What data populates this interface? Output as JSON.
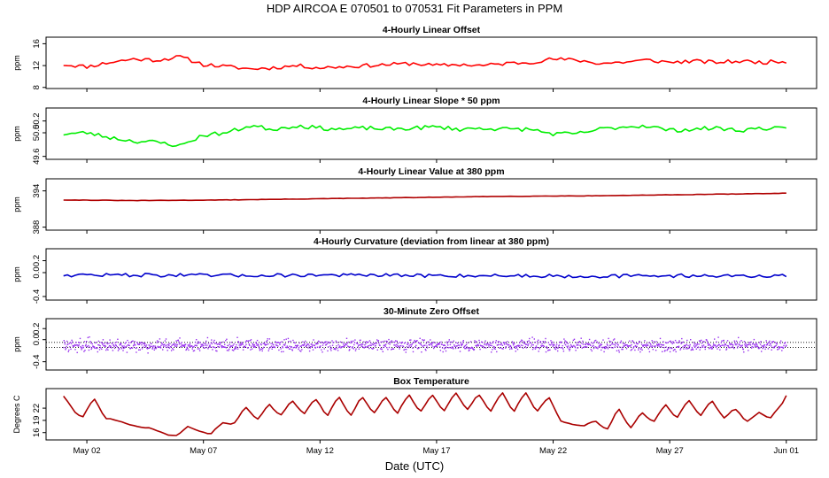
{
  "figure": {
    "title": "HDP   AIRCOA E   070501 to 070531   Fit Parameters in PPM",
    "xlabel": "Date (UTC)"
  },
  "x_axis": {
    "ticks": [
      {
        "day": 2,
        "label": "May 02"
      },
      {
        "day": 7,
        "label": "May 07"
      },
      {
        "day": 12,
        "label": "May 12"
      },
      {
        "day": 17,
        "label": "May 17"
      },
      {
        "day": 22,
        "label": "May 22"
      },
      {
        "day": 27,
        "label": "May 27"
      },
      {
        "day": 32,
        "label": "Jun 01"
      }
    ],
    "xlim": [
      0.25,
      33.3
    ]
  },
  "chart_data": [
    {
      "type": "line",
      "title": "4-Hourly Linear Offset",
      "ylabel": "ppm",
      "ylim": [
        7.8,
        17.2
      ],
      "yticks": [
        {
          "v": 8,
          "label": "8"
        },
        {
          "v": 12,
          "label": "12"
        },
        {
          "v": 16,
          "label": "16"
        }
      ],
      "color": "#ff0000",
      "mode": "line",
      "x_range": [
        1.0,
        32.0
      ],
      "x": [
        1,
        2,
        3,
        4,
        5,
        6,
        7,
        8,
        9,
        10,
        11,
        12,
        13,
        14,
        15,
        16,
        17,
        18,
        19,
        20,
        21,
        22,
        23,
        24,
        25,
        26,
        27,
        28,
        29,
        30,
        31,
        32
      ],
      "y": [
        12.2,
        11.8,
        12.6,
        13.2,
        13.0,
        13.6,
        12.2,
        11.8,
        11.4,
        11.6,
        12.0,
        11.6,
        11.8,
        12.0,
        12.2,
        12.4,
        12.0,
        12.2,
        12.0,
        12.4,
        12.6,
        13.2,
        13.0,
        12.4,
        12.6,
        13.0,
        12.6,
        12.8,
        12.6,
        12.8,
        12.6,
        12.8
      ],
      "noise": 0.35,
      "seed": 11
    },
    {
      "type": "line",
      "title": "4-Hourly Linear Slope * 50 ppm",
      "ylabel": "ppm",
      "ylim": [
        49.55,
        50.42
      ],
      "yticks": [
        {
          "v": 49.6,
          "label": "49.6"
        },
        {
          "v": 50.0,
          "label": "50.0"
        },
        {
          "v": 50.2,
          "label": "50.2"
        }
      ],
      "color": "#00ee00",
      "mode": "line",
      "x_range": [
        1.0,
        32.0
      ],
      "x": [
        1,
        2,
        3,
        4,
        5,
        6,
        7,
        8,
        9,
        10,
        11,
        12,
        13,
        14,
        15,
        16,
        17,
        18,
        19,
        20,
        21,
        22,
        23,
        24,
        25,
        26,
        27,
        28,
        29,
        30,
        31,
        32
      ],
      "y": [
        49.98,
        50.0,
        49.92,
        49.86,
        49.84,
        49.78,
        49.96,
        50.0,
        50.12,
        50.06,
        50.12,
        50.08,
        50.06,
        50.08,
        50.06,
        50.08,
        50.1,
        50.06,
        50.08,
        50.06,
        50.06,
        49.98,
        49.98,
        50.06,
        50.1,
        50.12,
        50.04,
        50.06,
        50.08,
        50.04,
        50.08,
        50.06
      ],
      "noise": 0.035,
      "seed": 23
    },
    {
      "type": "line",
      "title": "4-Hourly Linear Value at 380 ppm",
      "ylabel": "ppm",
      "ylim": [
        387.5,
        396.0
      ],
      "yticks": [
        {
          "v": 388,
          "label": "388"
        },
        {
          "v": 394,
          "label": "394"
        }
      ],
      "color": "#b00000",
      "mode": "line",
      "x_range": [
        1.0,
        32.0
      ],
      "x": [
        1,
        4,
        8,
        12,
        16,
        20,
        24,
        28,
        32
      ],
      "y": [
        392.5,
        392.4,
        392.5,
        392.7,
        392.9,
        393.1,
        393.2,
        393.4,
        393.6
      ],
      "noise": 0.03,
      "seed": 31
    },
    {
      "type": "line",
      "title": "4-Hourly Curvature (deviation from linear at 380 ppm)",
      "ylabel": "ppm",
      "ylim": [
        -0.46,
        0.4
      ],
      "yticks": [
        {
          "v": -0.4,
          "label": "-0.4"
        },
        {
          "v": 0.0,
          "label": "0.0"
        },
        {
          "v": 0.2,
          "label": "0.2"
        }
      ],
      "color": "#0000cc",
      "mode": "line",
      "x_range": [
        1.0,
        32.0
      ],
      "x": [
        1,
        4,
        8,
        12,
        16,
        20,
        24,
        28,
        32
      ],
      "y": [
        -0.04,
        -0.04,
        -0.05,
        -0.04,
        -0.05,
        -0.05,
        -0.06,
        -0.05,
        -0.06
      ],
      "noise": 0.03,
      "seed": 47
    },
    {
      "type": "scatter",
      "title": "30-Minute Zero Offset",
      "ylabel": "ppm",
      "ylim": [
        -0.55,
        0.38
      ],
      "yticks": [
        {
          "v": -0.4,
          "label": "-0.4"
        },
        {
          "v": 0.0,
          "label": "0.0"
        },
        {
          "v": 0.2,
          "label": "0.2"
        }
      ],
      "color": "#9933ee",
      "mode": "points",
      "x_range": [
        1.0,
        32.0
      ],
      "x": [
        1,
        32
      ],
      "y": [
        -0.1,
        -0.1
      ],
      "noise": 0.08,
      "seed": 59,
      "hlines": [
        {
          "v": -0.05,
          "label": "upper reference line"
        },
        {
          "v": -0.14,
          "label": "lower reference line"
        }
      ]
    },
    {
      "type": "line",
      "title": "Box Temperature",
      "ylabel": "Degrees C",
      "ylim": [
        14.2,
        26.8
      ],
      "yticks": [
        {
          "v": 16,
          "label": "16"
        },
        {
          "v": 19,
          "label": "19"
        },
        {
          "v": 22,
          "label": "22"
        }
      ],
      "color": "#aa0000",
      "mode": "line",
      "x_range": [
        1.0,
        32.0
      ],
      "x": [
        1.0,
        1.5,
        1.8,
        2.3,
        2.8,
        3.3,
        3.8,
        4.3,
        4.8,
        5.3,
        5.8,
        6.3,
        6.8,
        7.3,
        7.8,
        8.3,
        8.8,
        9.3,
        9.8,
        10.3,
        10.8,
        11.3,
        11.8,
        12.3,
        12.8,
        13.3,
        13.8,
        14.3,
        14.8,
        15.3,
        15.8,
        16.3,
        16.8,
        17.3,
        17.8,
        18.3,
        18.8,
        19.3,
        19.8,
        20.3,
        20.8,
        21.3,
        21.8,
        22.3,
        22.8,
        23.3,
        23.8,
        24.3,
        24.8,
        25.3,
        25.8,
        26.3,
        26.8,
        27.3,
        27.8,
        28.3,
        28.8,
        29.3,
        29.8,
        30.3,
        30.8,
        31.3,
        31.8,
        32.0
      ],
      "y": [
        25.0,
        21.0,
        19.5,
        24.5,
        19.5,
        19.0,
        18.0,
        17.3,
        17.0,
        15.8,
        15.0,
        17.5,
        16.5,
        15.5,
        18.5,
        18.0,
        22.5,
        19.0,
        23.0,
        20.0,
        24.0,
        20.5,
        24.5,
        20.0,
        25.0,
        20.0,
        25.0,
        20.5,
        25.0,
        20.5,
        25.5,
        21.0,
        25.5,
        21.0,
        26.0,
        21.5,
        25.5,
        21.0,
        26.0,
        21.0,
        26.0,
        21.0,
        25.0,
        19.0,
        18.0,
        17.5,
        19.0,
        16.5,
        22.0,
        17.0,
        21.0,
        18.5,
        23.0,
        19.5,
        24.0,
        20.0,
        24.0,
        19.5,
        22.0,
        18.5,
        21.0,
        19.5,
        23.0,
        25.0
      ],
      "noise": 0.12,
      "seed": 71
    }
  ]
}
